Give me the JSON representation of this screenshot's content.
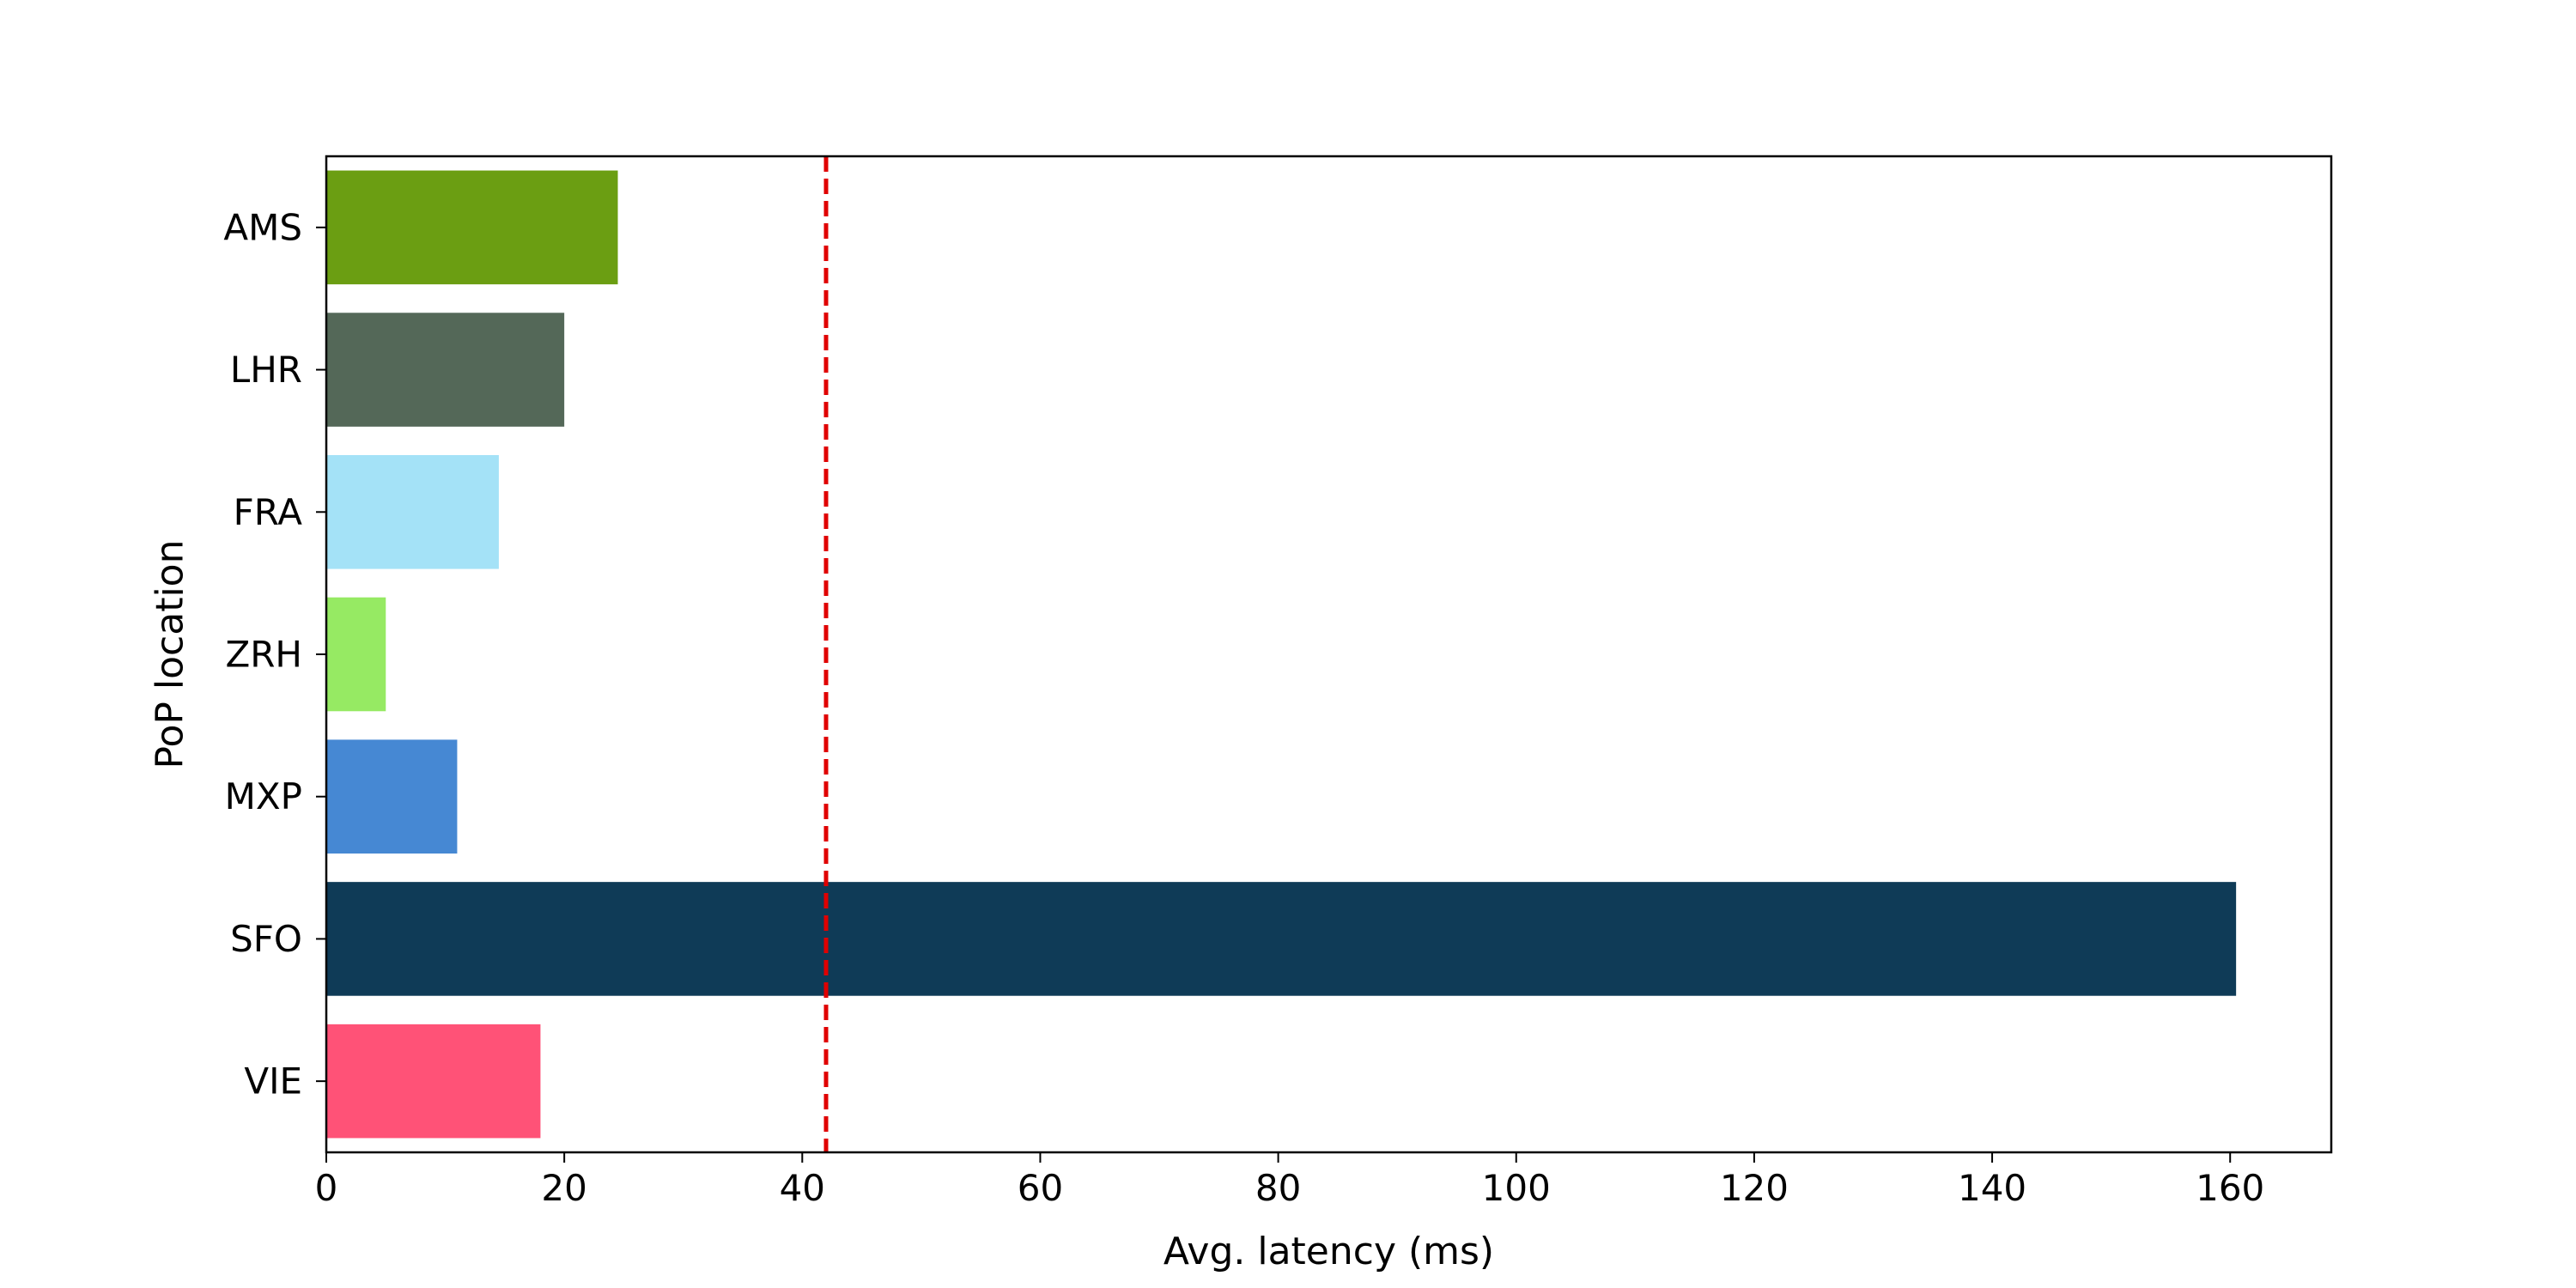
{
  "chart_data": {
    "type": "bar",
    "orientation": "horizontal",
    "title": "",
    "xlabel": "Avg. latency (ms)",
    "ylabel": "PoP location",
    "categories": [
      "AMS",
      "LHR",
      "FRA",
      "ZRH",
      "MXP",
      "SFO",
      "VIE"
    ],
    "values": [
      24.5,
      20.0,
      14.5,
      5.0,
      11.0,
      160.5,
      18.0
    ],
    "colors": [
      "#6b9e12",
      "#546858",
      "#a4e2f7",
      "#96ea63",
      "#4688d3",
      "#0f3b57",
      "#ff5277"
    ],
    "xlim": [
      0,
      168.5
    ],
    "xticks": [
      "0",
      "20",
      "40",
      "60",
      "80",
      "100",
      "120",
      "140",
      "160"
    ],
    "reference_line": {
      "x": 42,
      "color": "#e00000",
      "style": "dashed"
    },
    "grid": false,
    "legend": "none"
  }
}
